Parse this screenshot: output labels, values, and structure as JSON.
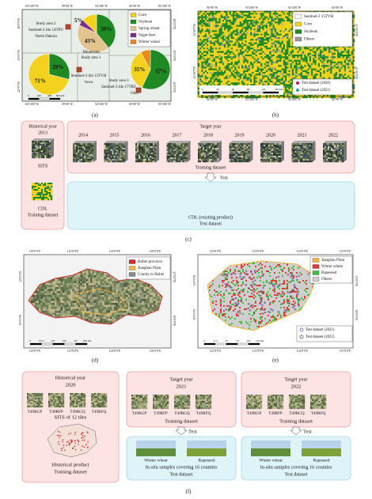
{
  "panel_a": {
    "lon_ticks": [
      "103°30'0\"W",
      "99°0'0\"W",
      "94°30'0\"W",
      "90°0'0\"W",
      "85°30'0\"W"
    ],
    "lat_ticks": [
      "48°0'0\"N",
      "45°0'0\"N",
      "42°0'0\"N"
    ],
    "legend": [
      {
        "name": "Corn",
        "color": "#f2d21f"
      },
      {
        "name": "Soybean",
        "color": "#1f8a24"
      },
      {
        "name": "Spring wheat",
        "color": "#e3c48f"
      },
      {
        "name": "Sugar beet",
        "color": "#7b2b8e"
      },
      {
        "name": "Winter wheat",
        "color": "#e8891a"
      }
    ],
    "labels": [
      "Study area 2",
      "Sentinel-2 tile 14TPU",
      "North Dakota",
      "Minnesota",
      "Study area 1",
      "Sentinel-2 tile 15TVH",
      "Iowa",
      "Study area 3",
      "Sentinel-2 tile 17TKF",
      "Ohio"
    ],
    "pies": [
      {
        "values": [
          39,
          43,
          5,
          13
        ],
        "colors": [
          "#1f8a24",
          "#e3c48f",
          "#7b2b8e",
          "#f2d21f"
        ],
        "labels": [
          "39%",
          "43%",
          "5%",
          null
        ]
      },
      {
        "values": [
          29,
          71
        ],
        "colors": [
          "#1f8a24",
          "#f2d21f"
        ],
        "labels": [
          "29%",
          "71%"
        ]
      },
      {
        "values": [
          57,
          35,
          8
        ],
        "colors": [
          "#1f8a24",
          "#f2d21f",
          "#e8891a"
        ],
        "labels": [
          "57%",
          "35%",
          null
        ]
      }
    ],
    "scale": [
      "0",
      "200",
      "400",
      "800 km"
    ],
    "caption": "(a)"
  },
  "panel_b": {
    "lon_ticks": [
      "94°0'0\"W",
      "93°20'0\"W",
      "92°40'0\"W",
      "92°0'0\"W"
    ],
    "lat_ticks": [
      "43°20'0\"N",
      "42°40'0\"N"
    ],
    "legend": [
      {
        "name": "Sentinel-2 15TVH",
        "color": "#ffffff"
      },
      {
        "name": "Corn",
        "color": "#f2d21f"
      },
      {
        "name": "Soybean",
        "color": "#1f8a24"
      },
      {
        "name": "Others",
        "color": "#9a9a9a"
      }
    ],
    "tests": [
      {
        "name": "Test dataset (2020)",
        "color": "#c2185b"
      },
      {
        "name": "Test dataset (2021)",
        "color": "#26a69a"
      }
    ],
    "scale": [
      "0",
      "20",
      "40",
      "80",
      "120",
      "160 km"
    ],
    "caption": "(b)"
  },
  "panel_c": {
    "historical_title": "Historical year",
    "historical_year": "2013",
    "sits": "SITS",
    "cdl": "CDL",
    "historical_dataset": "Training dataset",
    "target_title": "Target year",
    "years": [
      "2014",
      "2015",
      "2016",
      "2017",
      "2018",
      "2019",
      "2020",
      "2021",
      "2022"
    ],
    "target_dataset": "Training dataset",
    "test": "Test",
    "product": "CDL (existing product)",
    "test_dataset": "Test dataset",
    "caption": "(c)"
  },
  "panel_d": {
    "lon_ticks": [
      "110°0'0\"E",
      "112°0'0\"E",
      "114°0'0\"E",
      "116°0'0\"E"
    ],
    "lat_ticks": [
      "32°0'0\"N",
      "30°0'0\"N"
    ],
    "legend": [
      {
        "name": "Hubei province",
        "color": "#d32f2f"
      },
      {
        "name": "Jianghan Plain",
        "color": "#f5b642"
      },
      {
        "name": "County in Hubei",
        "color": "#888888"
      }
    ],
    "scale": [
      "0",
      "62.5",
      "125",
      "250",
      "375",
      "500 km"
    ],
    "caption": "(d)"
  },
  "panel_e": {
    "lon_ticks": [
      "112°0'0\"E",
      "113°0'0\"E",
      "114°0'0\"E",
      "115°0'0\"E"
    ],
    "lat_ticks": [
      "31°0'0\"N",
      "30°0'0\"N"
    ],
    "legend": [
      {
        "name": "Jianghan Plain",
        "color": "#f5b642"
      },
      {
        "name": "Winter wheat",
        "color": "#e53935"
      },
      {
        "name": "Rapeseed",
        "color": "#3fbf3f"
      },
      {
        "name": "Others",
        "color": "#cfcfcf"
      }
    ],
    "tests": [
      {
        "name": "Test dataset (2021)",
        "color": "#7b4fa0"
      },
      {
        "name": "Test dataset (2022)",
        "color": "#555555"
      }
    ],
    "scale": [
      "0",
      "17.5",
      "35",
      "70",
      "105",
      "140 km"
    ],
    "caption": "(e)"
  },
  "panel_f": {
    "historical": {
      "title": "Historical year",
      "year": "2020",
      "tiles": [
        "T49RGP",
        "T49RFP",
        "T49RGQ",
        "T49RFQ"
      ],
      "sits": "SITS of 12 tiles",
      "product": "Historical product",
      "dataset": "Training dataset"
    },
    "targets": [
      {
        "title": "Target year",
        "year": "2021",
        "tiles": [
          "T49RGP",
          "T49RFP",
          "T49RGQ",
          "T49RFQ"
        ],
        "training": "Training dataset",
        "test": "Test",
        "crops": [
          "Winter wheat",
          "Rapeseed"
        ],
        "insitu": "In-situ samples covering 16 counties",
        "dataset": "Test dataset"
      },
      {
        "title": "Target year",
        "year": "2022",
        "tiles": [
          "T49RGP",
          "T49RFP",
          "T49RGQ",
          "T49RFQ"
        ],
        "training": "Training dataset",
        "test": "Test",
        "crops": [
          "Winter wheat",
          "Rapeseed"
        ],
        "insitu": "In-situ samples covering 16 counties",
        "dataset": "Test dataset"
      }
    ],
    "caption": "(f)"
  }
}
